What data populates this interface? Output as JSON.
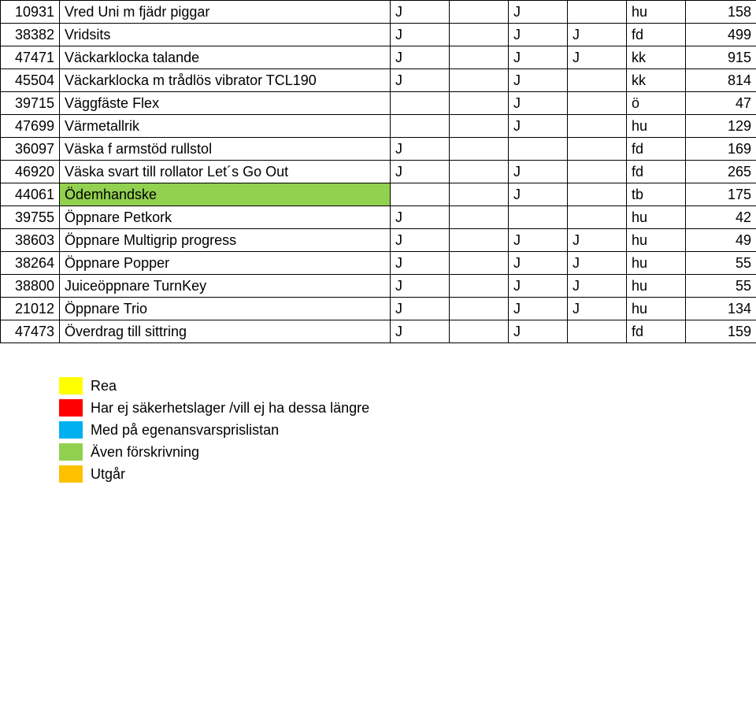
{
  "colors": {
    "rea": "#ffff00",
    "nostock": "#ff0000",
    "ega": "#00b0f0",
    "forskriv": "#92d050",
    "utgar": "#ffc000"
  },
  "table": {
    "rows": [
      {
        "id": "10931",
        "name": "Vred Uni m fjädr piggar",
        "c3": "J",
        "c4": "",
        "c5": "J",
        "c6": "",
        "c7": "hu",
        "val": "158",
        "bg": null
      },
      {
        "id": "38382",
        "name": "Vridsits",
        "c3": "J",
        "c4": "",
        "c5": "J",
        "c6": "J",
        "c7": "fd",
        "val": "499",
        "bg": null
      },
      {
        "id": "47471",
        "name": "Väckarklocka talande",
        "c3": "J",
        "c4": "",
        "c5": "J",
        "c6": "J",
        "c7": "kk",
        "val": "915",
        "bg": null
      },
      {
        "id": "45504",
        "name": "Väckarklocka m trådlös vibrator TCL190",
        "c3": "J",
        "c4": "",
        "c5": "J",
        "c6": "",
        "c7": "kk",
        "val": "814",
        "bg": null
      },
      {
        "id": "39715",
        "name": "Väggfäste Flex",
        "c3": "",
        "c4": "",
        "c5": "J",
        "c6": "",
        "c7": "ö",
        "val": "47",
        "bg": null
      },
      {
        "id": "47699",
        "name": "Värmetallrik",
        "c3": "",
        "c4": "",
        "c5": "J",
        "c6": "",
        "c7": "hu",
        "val": "129",
        "bg": null
      },
      {
        "id": "36097",
        "name": "Väska f armstöd rullstol",
        "c3": "J",
        "c4": "",
        "c5": "",
        "c6": "",
        "c7": "fd",
        "val": "169",
        "bg": null
      },
      {
        "id": "46920",
        "name": "Väska svart till rollator Let´s Go Out",
        "c3": "J",
        "c4": "",
        "c5": "J",
        "c6": "",
        "c7": "fd",
        "val": "265",
        "bg": null
      },
      {
        "id": "44061",
        "name": "Ödemhandske",
        "c3": "",
        "c4": "",
        "c5": "J",
        "c6": "",
        "c7": "tb",
        "val": "175",
        "bg": "forskriv"
      },
      {
        "id": "39755",
        "name": "Öppnare Petkork",
        "c3": "J",
        "c4": "",
        "c5": "",
        "c6": "",
        "c7": "hu",
        "val": "42",
        "bg": null
      },
      {
        "id": "38603",
        "name": "Öppnare Multigrip progress",
        "c3": "J",
        "c4": "",
        "c5": "J",
        "c6": "J",
        "c7": "hu",
        "val": "49",
        "bg": null
      },
      {
        "id": "38264",
        "name": "Öppnare Popper",
        "c3": "J",
        "c4": "",
        "c5": "J",
        "c6": "J",
        "c7": "hu",
        "val": "55",
        "bg": null
      },
      {
        "id": "38800",
        "name": "Juiceöppnare TurnKey",
        "c3": "J",
        "c4": "",
        "c5": "J",
        "c6": "J",
        "c7": "hu",
        "val": "55",
        "bg": null
      },
      {
        "id": "21012",
        "name": "Öppnare Trio",
        "c3": "J",
        "c4": "",
        "c5": "J",
        "c6": "J",
        "c7": "hu",
        "val": "134",
        "bg": null
      },
      {
        "id": "47473",
        "name": "Överdrag till sittring",
        "c3": "J",
        "c4": "",
        "c5": "J",
        "c6": "",
        "c7": "fd",
        "val": "159",
        "bg": null
      }
    ]
  },
  "legend": [
    {
      "color_key": "rea",
      "label": "Rea"
    },
    {
      "color_key": "nostock",
      "label": "Har ej säkerhetslager /vill ej ha dessa längre"
    },
    {
      "color_key": "ega",
      "label": "Med på egenansvarsprislistan"
    },
    {
      "color_key": "forskriv",
      "label": "Även förskrivning"
    },
    {
      "color_key": "utgar",
      "label": "Utgår"
    }
  ]
}
